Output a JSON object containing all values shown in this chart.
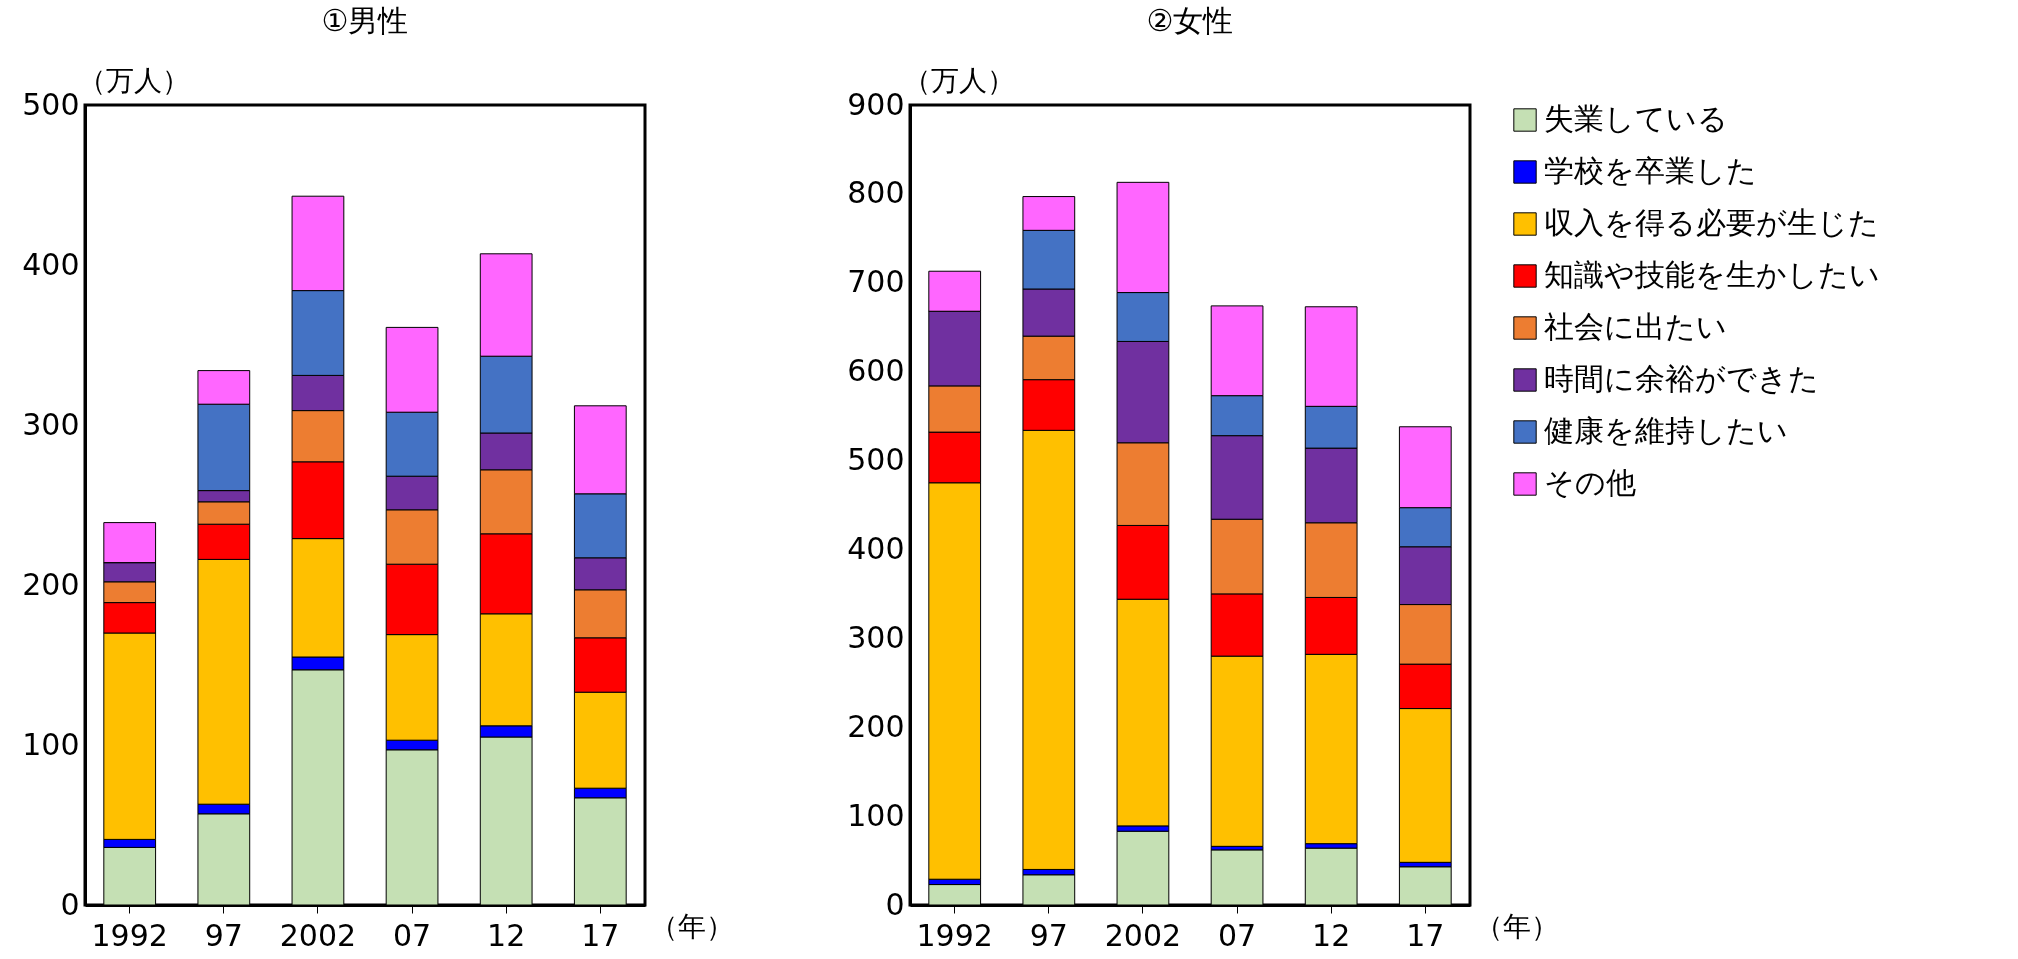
{
  "chart_data": [
    {
      "type": "bar",
      "stacked": true,
      "title": "①男性",
      "ylabel": "（万人）",
      "xlabel": "（年）",
      "categories": [
        "1992",
        "97",
        "2002",
        "07",
        "12",
        "17"
      ],
      "ylim": [
        0,
        500
      ],
      "yticks": [
        0,
        100,
        200,
        300,
        400,
        500
      ],
      "series": [
        {
          "color": "#c5e0b4",
          "values": [
            36,
            57,
            147,
            97,
            105,
            67
          ]
        },
        {
          "color": "#0000ff",
          "values": [
            5,
            6,
            8,
            6,
            7,
            6
          ]
        },
        {
          "color": "#ffc000",
          "values": [
            129,
            153,
            74,
            66,
            70,
            60
          ]
        },
        {
          "color": "#ff0000",
          "values": [
            19,
            22,
            48,
            44,
            50,
            34
          ]
        },
        {
          "color": "#ed7d31",
          "values": [
            13,
            14,
            32,
            34,
            40,
            30
          ]
        },
        {
          "color": "#7030a0",
          "values": [
            12,
            7,
            22,
            21,
            23,
            20
          ]
        },
        {
          "color": "#4472c4",
          "values": [
            0,
            54,
            53,
            40,
            48,
            40
          ]
        },
        {
          "color": "#ff66ff",
          "values": [
            25,
            21,
            59,
            53,
            64,
            55
          ]
        }
      ]
    },
    {
      "type": "bar",
      "stacked": true,
      "title": "②女性",
      "ylabel": "（万人）",
      "xlabel": "（年）",
      "categories": [
        "1992",
        "97",
        "2002",
        "07",
        "12",
        "17"
      ],
      "ylim": [
        0,
        900
      ],
      "yticks": [
        0,
        100,
        200,
        300,
        400,
        500,
        600,
        700,
        800,
        900
      ],
      "legend": "right",
      "series": [
        {
          "name": "失業している",
          "color": "#c5e0b4",
          "values": [
            23,
            34,
            83,
            62,
            64,
            43
          ]
        },
        {
          "name": "学校を卒業した",
          "color": "#0000ff",
          "values": [
            6,
            6,
            6,
            4,
            5,
            5
          ]
        },
        {
          "name": "収入を得る必要が生じた",
          "color": "#ffc000",
          "values": [
            446,
            494,
            255,
            214,
            213,
            173
          ]
        },
        {
          "name": "知識や技能を生かしたい",
          "color": "#ff0000",
          "values": [
            57,
            57,
            83,
            70,
            64,
            50
          ]
        },
        {
          "name": "社会に出たい",
          "color": "#ed7d31",
          "values": [
            52,
            49,
            93,
            84,
            84,
            67
          ]
        },
        {
          "name": "時間に余裕ができた",
          "color": "#7030a0",
          "values": [
            84,
            53,
            114,
            94,
            84,
            65
          ]
        },
        {
          "name": "健康を維持したい",
          "color": "#4472c4",
          "values": [
            0,
            66,
            55,
            45,
            47,
            44
          ]
        },
        {
          "name": "その他",
          "color": "#ff66ff",
          "values": [
            45,
            38,
            124,
            101,
            112,
            91
          ]
        }
      ]
    }
  ]
}
